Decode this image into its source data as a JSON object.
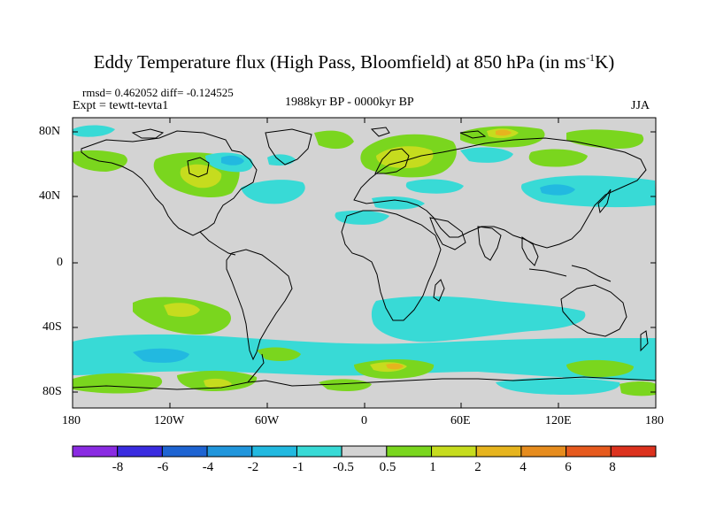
{
  "title": {
    "main": "Eddy Temperature flux (High Pass, Bloomfield) at 850 hPa (in ms",
    "sup": "-1",
    "end": "K)"
  },
  "stats": "rmsd= 0.462052  diff= -0.124525",
  "expt": "Expt = tewtt-tevta1",
  "period": "1988kyr BP - 0000kyr BP",
  "season": "JJA",
  "lat_ticks": [
    "80N",
    "40N",
    "0",
    "40S",
    "80S"
  ],
  "lon_ticks": [
    "180",
    "120W",
    "60W",
    "0",
    "60E",
    "120E",
    "180"
  ],
  "colorbar": {
    "labels": [
      "-8",
      "-6",
      "-4",
      "-2",
      "-1",
      "-0.5",
      "0.5",
      "1",
      "2",
      "4",
      "6",
      "8"
    ],
    "colors": [
      "#8a2be2",
      "#3a2ce0",
      "#1e64d2",
      "#2196dc",
      "#22b9e0",
      "#38dad6",
      "#d3d3d3",
      "#7ad61e",
      "#c6dc1e",
      "#e6b41e",
      "#e68c1e",
      "#e65a1e",
      "#dc321e"
    ]
  },
  "map": {
    "ocean_color": "#d3d3d3",
    "coast_color": "#000000",
    "extent_lon": [
      -180,
      180
    ],
    "extent_lat": [
      -90,
      90
    ]
  }
}
